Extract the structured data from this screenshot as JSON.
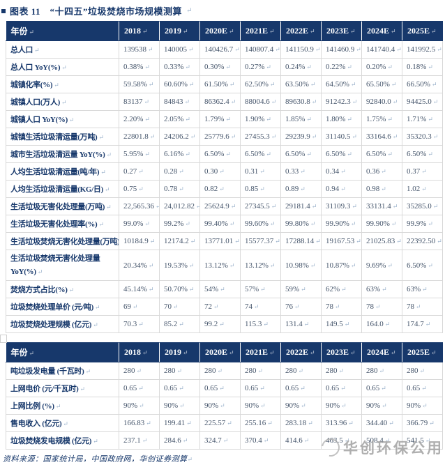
{
  "title": {
    "text": "图表 11　“十四五”垃圾焚烧市场规模测算"
  },
  "marks": {
    "paragraph": "↵"
  },
  "columns": [
    "年份",
    "2018",
    "2019",
    "2020E",
    "2021E",
    "2022E",
    "2023E",
    "2024E",
    "2025E"
  ],
  "tables": [
    {
      "id": "waste-incineration-market-table",
      "rows": [
        {
          "label": "总人口",
          "values": [
            "139538",
            "140005",
            "140426.7",
            "140807.4",
            "141150.9",
            "141460.9",
            "141740.4",
            "141992.5"
          ]
        },
        {
          "label": "总人口 YoY(%)",
          "values": [
            "0.38%",
            "0.33%",
            "0.30%",
            "0.27%",
            "0.24%",
            "0.22%",
            "0.20%",
            "0.18%"
          ]
        },
        {
          "label": "城镇化率(%)",
          "values": [
            "59.58%",
            "60.60%",
            "61.50%",
            "62.50%",
            "63.50%",
            "64.50%",
            "65.50%",
            "66.50%"
          ]
        },
        {
          "label": "城镇人口(万人)",
          "values": [
            "83137",
            "84843",
            "86362.4",
            "88004.6",
            "89630.8",
            "91242.3",
            "92840.0",
            "94425.0"
          ]
        },
        {
          "label": "城镇人口 YoY(%)",
          "values": [
            "2.20%",
            "2.05%",
            "1.79%",
            "1.90%",
            "1.85%",
            "1.80%",
            "1.75%",
            "1.71%"
          ]
        },
        {
          "label": "城镇生活垃圾清运量(万吨)",
          "values": [
            "22801.8",
            "24206.2",
            "25779.6",
            "27455.3",
            "29239.9",
            "31140.5",
            "33164.6",
            "35320.3"
          ]
        },
        {
          "label": "城市生活垃圾清运量 YoY(%)",
          "values": [
            "5.95%",
            "6.16%",
            "6.50%",
            "6.50%",
            "6.50%",
            "6.50%",
            "6.50%",
            "6.50%"
          ]
        },
        {
          "label": "人均生活垃圾清运量(吨/年)",
          "values": [
            "0.27",
            "0.28",
            "0.30",
            "0.31",
            "0.33",
            "0.34",
            "0.36",
            "0.37"
          ]
        },
        {
          "label": "人均生活垃圾清运量(KG/日)",
          "values": [
            "0.75",
            "0.78",
            "0.82",
            "0.85",
            "0.89",
            "0.94",
            "0.98",
            "1.02"
          ]
        },
        {
          "label": "生活垃圾无害化处理量(万吨)",
          "values": [
            "22,565.36",
            "24,012.82",
            "25624.9",
            "27345.5",
            "29181.4",
            "31109.3",
            "33131.4",
            "35285.0"
          ]
        },
        {
          "label": "生活垃圾无害化处理率(%)",
          "values": [
            "99.0%",
            "99.2%",
            "99.40%",
            "99.60%",
            "99.80%",
            "99.90%",
            "99.90%",
            "99.9%"
          ]
        },
        {
          "label": "生活垃圾焚烧无害化处理量(万吨)",
          "values": [
            "10184.9",
            "12174.2",
            "13771.01",
            "15577.37",
            "17288.14",
            "19167.53",
            "21025.83",
            "22392.50"
          ]
        },
        {
          "label": "生活垃圾焚烧无害化处理量 YoY(%)",
          "wrap": true,
          "values": [
            "20.34%",
            "19.53%",
            "13.12%",
            "13.12%",
            "10.98%",
            "10.87%",
            "9.69%",
            "6.50%"
          ]
        },
        {
          "label": "焚烧方式占比(%)",
          "values": [
            "45.14%",
            "50.70%",
            "54%",
            "57%",
            "59%",
            "62%",
            "63%",
            "63%"
          ]
        },
        {
          "label": "垃圾焚烧处理单价 (元/吨)",
          "values": [
            "69",
            "70",
            "72",
            "74",
            "76",
            "78",
            "78",
            "78"
          ]
        },
        {
          "label": "垃圾焚烧处理规模 (亿元)",
          "values": [
            "70.3",
            "85.2",
            "99.2",
            "115.3",
            "131.4",
            "149.5",
            "164.0",
            "174.7"
          ]
        }
      ]
    },
    {
      "id": "power-generation-table",
      "rows": [
        {
          "label": "吨垃圾发电量 (千瓦时)",
          "values": [
            "280",
            "280",
            "280",
            "280",
            "280",
            "280",
            "280",
            "280"
          ]
        },
        {
          "label": "上网电价 (元/千瓦时)",
          "values": [
            "0.65",
            "0.65",
            "0.65",
            "0.65",
            "0.65",
            "0.65",
            "0.65",
            "0.65"
          ]
        },
        {
          "label": "上网比例 (%)",
          "values": [
            "90%",
            "90%",
            "90%",
            "90%",
            "90%",
            "90%",
            "90%",
            "90%"
          ]
        },
        {
          "label": "售电收入 (亿元)",
          "values": [
            "166.83",
            "199.41",
            "225.57",
            "255.16",
            "283.18",
            "313.96",
            "344.40",
            "366.79"
          ]
        },
        {
          "label": "垃圾焚烧发电规模 (亿元)",
          "values": [
            "237.1",
            "284.6",
            "324.7",
            "370.4",
            "414.6",
            "463.5",
            "508.4",
            "541.5"
          ]
        }
      ]
    }
  ],
  "footer": {
    "source": "资料来源：国家统计局，中国政府网，华创证券测算"
  },
  "watermark": {
    "text": "华创环保公用"
  },
  "colors": {
    "header_bg": "#17386B",
    "header_text": "#FFFFFF",
    "row_label": "#17386B",
    "cell_value": "#44546A",
    "border": "#D9D9D9",
    "paragraph_mark": "#9CB3CC"
  }
}
